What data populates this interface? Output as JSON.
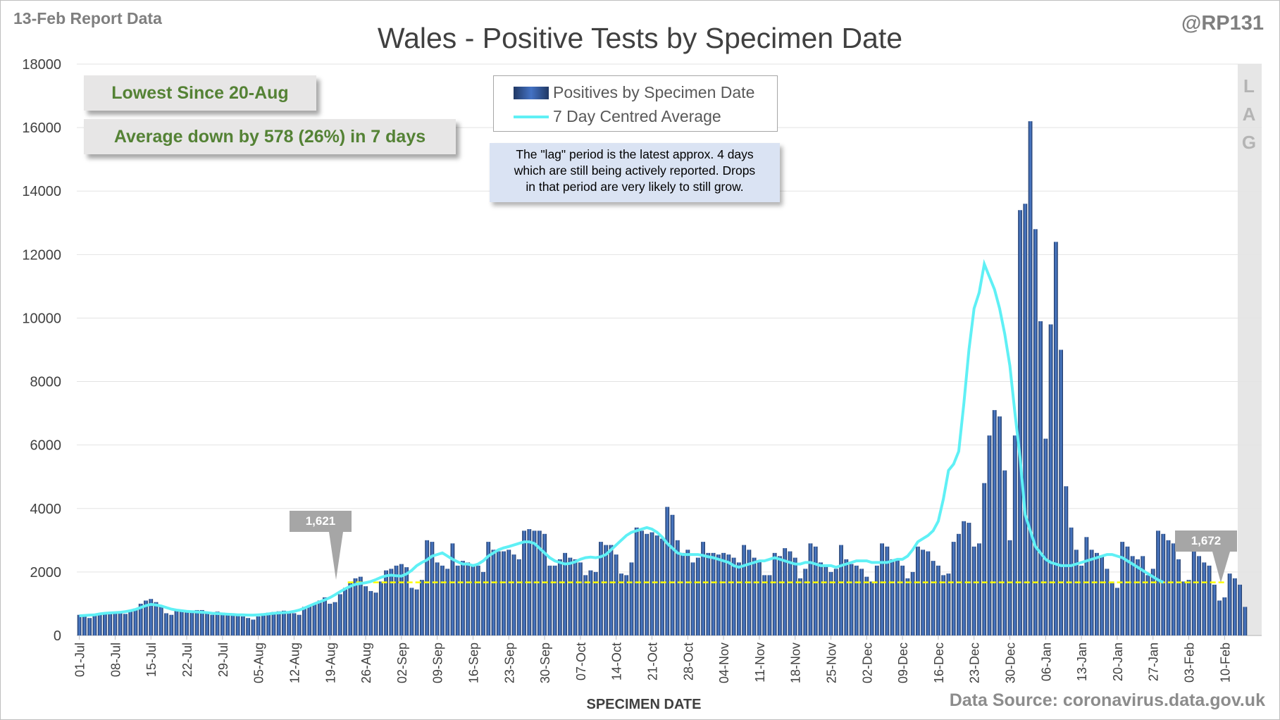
{
  "header": {
    "report_date": "13-Feb Report Data",
    "handle": "@RP131",
    "title": "Wales - Positive Tests by Specimen Date",
    "source": "Data Source: coronavirus.data.gov.uk"
  },
  "callouts": {
    "lowest": "Lowest Since 20-Aug",
    "average": "Average down by 578 (26%) in 7 days"
  },
  "note": {
    "line1": "The \"lag\" period is the latest approx. 4 days",
    "line2": "which are still being actively reported.  Drops",
    "line3": "in that period are very likely to still grow."
  },
  "lag": [
    "L",
    "A",
    "G"
  ],
  "flags": {
    "left": "1,621",
    "right": "1,672"
  },
  "colors": {
    "bar_dark": "#203864",
    "bar_light": "#4f81d1",
    "average_line": "#5ff0f5",
    "reference_line": "#ffff00",
    "callout_text": "#548235"
  },
  "chart_data": {
    "type": "bar",
    "xlabel": "SPECIMEN DATE",
    "ylabel": "",
    "ylim": [
      0,
      18000
    ],
    "yticks": [
      0,
      2000,
      4000,
      6000,
      8000,
      10000,
      12000,
      14000,
      16000,
      18000
    ],
    "x_start": "01-Jul",
    "x_tick_labels": [
      "01-Jul",
      "08-Jul",
      "15-Jul",
      "22-Jul",
      "29-Jul",
      "05-Aug",
      "12-Aug",
      "19-Aug",
      "26-Aug",
      "02-Sep",
      "09-Sep",
      "16-Sep",
      "23-Sep",
      "30-Sep",
      "07-Oct",
      "14-Oct",
      "21-Oct",
      "28-Oct",
      "04-Nov",
      "11-Nov",
      "18-Nov",
      "25-Nov",
      "02-Dec",
      "09-Dec",
      "16-Dec",
      "23-Dec",
      "30-Dec",
      "06-Jan",
      "13-Jan",
      "20-Jan",
      "27-Jan",
      "03-Feb",
      "10-Feb"
    ],
    "grid": true,
    "legend_position": "top-center",
    "reference_value": 1672,
    "lag_days": 4,
    "series": [
      {
        "name": "Positives by Specimen Date",
        "type": "bar",
        "values": [
          650,
          600,
          550,
          620,
          700,
          720,
          730,
          740,
          700,
          680,
          780,
          850,
          1000,
          1100,
          1150,
          1050,
          950,
          700,
          650,
          800,
          800,
          780,
          750,
          800,
          800,
          700,
          650,
          750,
          720,
          650,
          700,
          620,
          600,
          550,
          500,
          600,
          700,
          720,
          740,
          760,
          780,
          750,
          700,
          650,
          900,
          950,
          1000,
          1100,
          1200,
          1000,
          1050,
          1300,
          1500,
          1700,
          1800,
          1850,
          1550,
          1400,
          1350,
          1700,
          2050,
          2100,
          2200,
          2250,
          2150,
          1500,
          1450,
          1750,
          3000,
          2950,
          2300,
          2200,
          2100,
          2900,
          2200,
          2350,
          2300,
          2250,
          2200,
          2000,
          2950,
          2700,
          2650,
          2650,
          2700,
          2550,
          2400,
          3300,
          3350,
          3300,
          3300,
          3200,
          2200,
          2200,
          2400,
          2600,
          2450,
          2400,
          2300,
          1900,
          2050,
          2000,
          2950,
          2850,
          2850,
          2550,
          1950,
          1900,
          2300,
          3400,
          3300,
          3200,
          3250,
          3150,
          3050,
          4050,
          3800,
          3000,
          2600,
          2700,
          2300,
          2450,
          2950,
          2600,
          2600,
          2550,
          2600,
          2550,
          2450,
          2300,
          2850,
          2700,
          2450,
          2350,
          1900,
          1900,
          2600,
          2500,
          2750,
          2650,
          2450,
          1800,
          2100,
          2900,
          2800,
          2300,
          2200,
          2000,
          2100,
          2850,
          2400,
          2250,
          2200,
          2100,
          1850,
          1700,
          2200,
          2900,
          2800,
          2400,
          2400,
          2200,
          1800,
          2000,
          2800,
          2700,
          2650,
          2350,
          2200,
          1900,
          1950,
          2950,
          3200,
          3600,
          3550,
          2800,
          2900,
          4800,
          6300,
          7100,
          6900,
          5200,
          3000,
          6300,
          13400,
          13600,
          16200,
          12800,
          9900,
          6200,
          9800,
          12400,
          9000,
          4700,
          3400,
          2700,
          2200,
          3100,
          2700,
          2600,
          2500,
          2100,
          1700,
          1500,
          2950,
          2800,
          2500,
          2400,
          2500,
          1900,
          2100,
          3300,
          3200,
          3000,
          2900,
          2400,
          1700,
          1750,
          2700,
          2500,
          2300,
          2200,
          1600,
          1100,
          1200,
          1950,
          1800,
          1600,
          900
        ]
      },
      {
        "name": "7 Day Centred Average",
        "type": "line",
        "values": [
          620,
          630,
          640,
          650,
          680,
          700,
          710,
          720,
          730,
          750,
          780,
          820,
          880,
          940,
          980,
          960,
          930,
          880,
          830,
          800,
          780,
          760,
          750,
          740,
          730,
          720,
          700,
          690,
          680,
          670,
          660,
          650,
          650,
          640,
          640,
          650,
          660,
          680,
          700,
          710,
          720,
          730,
          760,
          800,
          860,
          930,
          1000,
          1060,
          1120,
          1190,
          1280,
          1380,
          1470,
          1550,
          1610,
          1640,
          1660,
          1700,
          1760,
          1830,
          1880,
          1900,
          1880,
          1870,
          1940,
          2050,
          2200,
          2300,
          2380,
          2500,
          2550,
          2600,
          2500,
          2400,
          2320,
          2250,
          2250,
          2200,
          2250,
          2350,
          2500,
          2600,
          2700,
          2760,
          2800,
          2850,
          2900,
          2950,
          2950,
          2900,
          2750,
          2600,
          2450,
          2350,
          2300,
          2250,
          2270,
          2320,
          2400,
          2450,
          2470,
          2450,
          2480,
          2550,
          2700,
          2850,
          3000,
          3150,
          3250,
          3300,
          3350,
          3400,
          3350,
          3250,
          3100,
          2900,
          2750,
          2600,
          2550,
          2550,
          2550,
          2550,
          2520,
          2480,
          2450,
          2400,
          2350,
          2300,
          2200,
          2150,
          2200,
          2250,
          2300,
          2350,
          2350,
          2400,
          2450,
          2400,
          2350,
          2300,
          2250,
          2250,
          2300,
          2300,
          2250,
          2200,
          2200,
          2200,
          2150,
          2200,
          2250,
          2300,
          2350,
          2350,
          2350,
          2300,
          2300,
          2300,
          2300,
          2350,
          2400,
          2400,
          2500,
          2700,
          2950,
          3050,
          3150,
          3300,
          3600,
          4300,
          5200,
          5400,
          5800,
          7300,
          9000,
          10300,
          10800,
          11700,
          11300,
          10900,
          10300,
          9500,
          8500,
          7000,
          5600,
          3800,
          3300,
          2800,
          2600,
          2400,
          2300,
          2250,
          2200,
          2200,
          2200,
          2250,
          2300,
          2350,
          2400,
          2450,
          2500,
          2550,
          2550,
          2500,
          2450,
          2350,
          2250,
          2150,
          2050,
          1950,
          1850,
          1750,
          1672
        ]
      }
    ]
  }
}
